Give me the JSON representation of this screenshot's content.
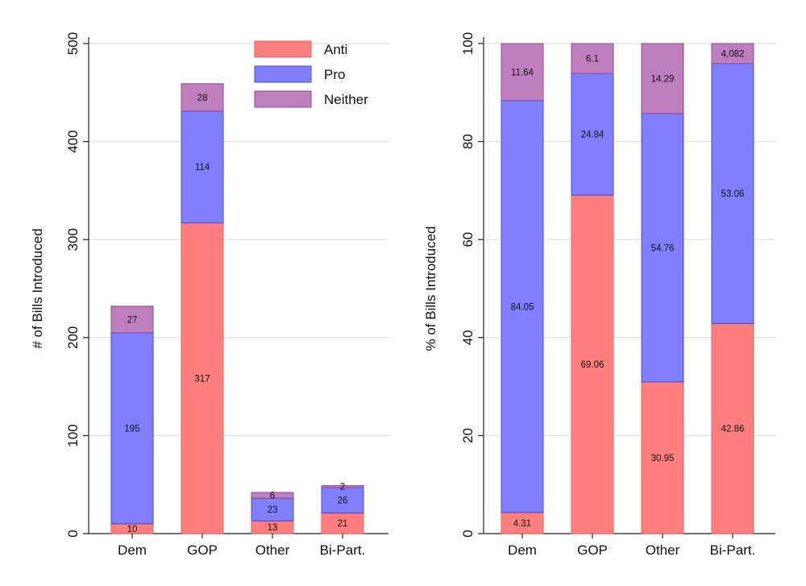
{
  "chart_data": [
    {
      "type": "bar",
      "stacked": true,
      "categories": [
        "Dem",
        "GOP",
        "Other",
        "Bi-Part."
      ],
      "series": [
        {
          "name": "Anti",
          "values": [
            10,
            317,
            13,
            21
          ],
          "labels": [
            "10",
            "317",
            "13",
            "21"
          ]
        },
        {
          "name": "Pro",
          "values": [
            195,
            114,
            23,
            26
          ],
          "labels": [
            "195",
            "114",
            "23",
            "26"
          ]
        },
        {
          "name": "Neither",
          "values": [
            27,
            28,
            6,
            2
          ],
          "labels": [
            "27",
            "28",
            "6",
            "2"
          ]
        }
      ],
      "ylabel": "# of Bills Introduced",
      "ylim": [
        0,
        500
      ],
      "yticks": [
        "0",
        "100",
        "200",
        "300",
        "400",
        "500"
      ],
      "grid": true,
      "legend": "top-right"
    },
    {
      "type": "bar",
      "stacked": true,
      "categories": [
        "Dem",
        "GOP",
        "Other",
        "Bi-Part."
      ],
      "series": [
        {
          "name": "Anti",
          "values": [
            4.31,
            69.06,
            30.95,
            42.86
          ],
          "labels": [
            "4.31",
            "69.06",
            "30.95",
            "42.86"
          ]
        },
        {
          "name": "Pro",
          "values": [
            84.05,
            24.84,
            54.76,
            53.06
          ],
          "labels": [
            "84.05",
            "24.84",
            "54.76",
            "53.06"
          ]
        },
        {
          "name": "Neither",
          "values": [
            11.64,
            6.1,
            14.29,
            4.082
          ],
          "labels": [
            "11.64",
            "6.1",
            "14.29",
            "4.082"
          ]
        }
      ],
      "ylabel": "% of Bills Introduced",
      "ylim": [
        0,
        100
      ],
      "yticks": [
        "0",
        "20",
        "40",
        "60",
        "80",
        "100"
      ],
      "grid": true
    }
  ],
  "colors": {
    "anti_fill": "#ff7f7f",
    "anti_edge": "#e06060",
    "pro_fill": "#7f7fff",
    "pro_edge": "#4848d8",
    "neither_fill": "#bf7fbf",
    "neither_edge": "#8a4a9a",
    "grid": "#d9d9d9",
    "axis": "#222222"
  }
}
